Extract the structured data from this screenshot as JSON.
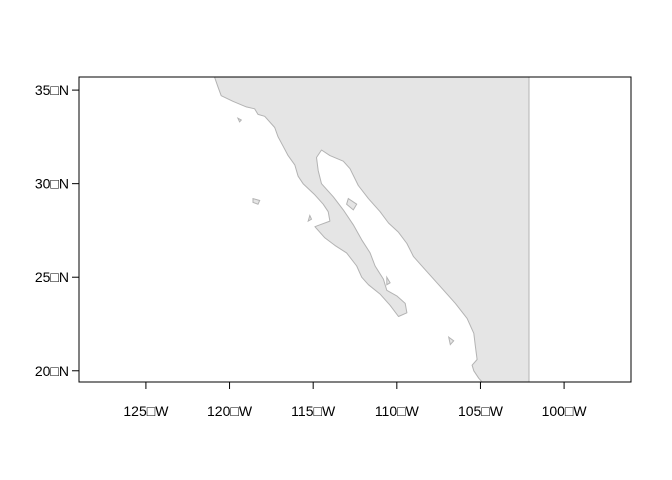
{
  "map": {
    "colors": {
      "land_fill": "#e5e5e5",
      "coast_stroke": "#b3b3b3",
      "frame_stroke": "#000000",
      "ocean": "#ffffff"
    },
    "extent": {
      "lon_min": -129,
      "lon_max": -96,
      "lat_min": 19.4,
      "lat_max": 35.7
    },
    "land_east_limit_lon": -102.1,
    "x_ticks": [
      {
        "lon": -125,
        "label": "125□W"
      },
      {
        "lon": -120,
        "label": "120□W"
      },
      {
        "lon": -115,
        "label": "115□W"
      },
      {
        "lon": -110,
        "label": "110□W"
      },
      {
        "lon": -105,
        "label": "105□W"
      },
      {
        "lon": -100,
        "label": "100□W"
      }
    ],
    "y_ticks": [
      {
        "lat": 35,
        "label": "35□N"
      },
      {
        "lat": 30,
        "label": "30□N"
      },
      {
        "lat": 25,
        "label": "25□N"
      },
      {
        "lat": 20,
        "label": "20□N"
      }
    ],
    "mainland_coast": [
      [
        -120.9,
        35.7
      ],
      [
        -120.7,
        35.2
      ],
      [
        -120.5,
        34.7
      ],
      [
        -119.8,
        34.4
      ],
      [
        -119.0,
        34.1
      ],
      [
        -118.5,
        34.0
      ],
      [
        -118.3,
        33.7
      ],
      [
        -117.9,
        33.6
      ],
      [
        -117.3,
        33.0
      ],
      [
        -117.1,
        32.5
      ],
      [
        -116.8,
        32.0
      ],
      [
        -116.5,
        31.5
      ],
      [
        -116.1,
        31.0
      ],
      [
        -115.9,
        30.4
      ],
      [
        -115.6,
        30.0
      ],
      [
        -114.9,
        29.4
      ],
      [
        -114.4,
        28.9
      ],
      [
        -114.1,
        28.5
      ],
      [
        -114.0,
        28.0
      ],
      [
        -114.6,
        27.8
      ],
      [
        -114.9,
        27.7
      ],
      [
        -114.3,
        27.1
      ],
      [
        -113.7,
        26.7
      ],
      [
        -113.0,
        26.3
      ],
      [
        -112.4,
        25.6
      ],
      [
        -112.1,
        25.0
      ],
      [
        -111.7,
        24.6
      ],
      [
        -111.0,
        24.1
      ],
      [
        -110.4,
        23.5
      ],
      [
        -109.9,
        22.9
      ],
      [
        -109.4,
        23.1
      ],
      [
        -109.5,
        23.6
      ],
      [
        -110.0,
        24.0
      ],
      [
        -110.6,
        24.3
      ],
      [
        -110.8,
        24.9
      ],
      [
        -111.3,
        25.6
      ],
      [
        -111.6,
        26.3
      ],
      [
        -112.1,
        27.0
      ],
      [
        -112.6,
        27.8
      ],
      [
        -113.2,
        28.6
      ],
      [
        -113.8,
        29.3
      ],
      [
        -114.5,
        30.0
      ],
      [
        -114.7,
        30.7
      ],
      [
        -114.8,
        31.4
      ],
      [
        -114.5,
        31.8
      ],
      [
        -114.0,
        31.5
      ],
      [
        -113.2,
        31.2
      ],
      [
        -112.8,
        30.8
      ],
      [
        -112.3,
        29.9
      ],
      [
        -111.7,
        29.2
      ],
      [
        -111.0,
        28.5
      ],
      [
        -110.5,
        27.9
      ],
      [
        -109.9,
        27.4
      ],
      [
        -109.4,
        26.8
      ],
      [
        -109.0,
        26.1
      ],
      [
        -108.4,
        25.5
      ],
      [
        -107.8,
        24.9
      ],
      [
        -107.2,
        24.3
      ],
      [
        -106.5,
        23.6
      ],
      [
        -105.8,
        22.8
      ],
      [
        -105.4,
        22.0
      ],
      [
        -105.3,
        21.3
      ],
      [
        -105.2,
        20.6
      ],
      [
        -105.5,
        20.3
      ],
      [
        -105.4,
        20.0
      ],
      [
        -105.1,
        19.6
      ],
      [
        -104.9,
        19.4
      ]
    ],
    "islands": [
      [
        [
          -118.6,
          29.2
        ],
        [
          -118.2,
          29.1
        ],
        [
          -118.3,
          28.9
        ],
        [
          -118.6,
          29.0
        ]
      ],
      [
        [
          -112.9,
          29.2
        ],
        [
          -112.4,
          28.9
        ],
        [
          -112.6,
          28.6
        ],
        [
          -113.0,
          28.9
        ]
      ],
      [
        [
          -115.2,
          28.3
        ],
        [
          -115.1,
          28.1
        ],
        [
          -115.3,
          28.0
        ]
      ],
      [
        [
          -119.5,
          33.5
        ],
        [
          -119.3,
          33.4
        ],
        [
          -119.4,
          33.3
        ]
      ],
      [
        [
          -110.6,
          25.0
        ],
        [
          -110.4,
          24.7
        ],
        [
          -110.6,
          24.6
        ]
      ],
      [
        [
          -106.9,
          21.8
        ],
        [
          -106.6,
          21.6
        ],
        [
          -106.8,
          21.4
        ]
      ]
    ]
  }
}
